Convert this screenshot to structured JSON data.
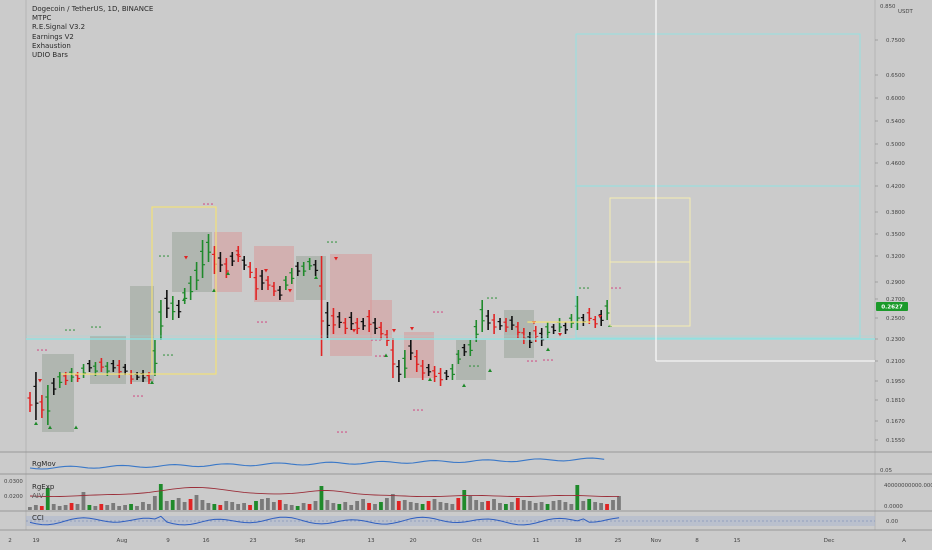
{
  "legend": {
    "symbol": "Dogecoin / TetherUS, 1D, BINANCE",
    "indicators": [
      "MTPC",
      "R.E.Signal V3.2",
      "Earnings V2",
      "Exhaustion",
      "UDIO Bars"
    ]
  },
  "price_axis": {
    "currency": "USDT",
    "top_label": "0.850",
    "ticks": [
      "0.7500",
      "0.6500",
      "0.6000",
      "0.5400",
      "0.5000",
      "0.4600",
      "0.4200",
      "0.3800",
      "0.3500",
      "0.3200",
      "0.2900",
      "0.2700",
      "0.2500",
      "0.2300",
      "0.2100",
      "0.1950",
      "0.1810",
      "0.1670",
      "0.1550"
    ],
    "current_price": "0.2627",
    "current_price_color": "#1b9a2a"
  },
  "panes": {
    "rgmov": {
      "label": "RgMov",
      "axis": "0.05"
    },
    "rgexp": {
      "label": "RgExp",
      "sub": "AIV",
      "axis_left": [
        "0.0300",
        "0.0200"
      ],
      "axis_right": [
        "40000000000.0000",
        "0.0000"
      ]
    },
    "cci": {
      "label": "CCI",
      "axis": "0.00"
    }
  },
  "date_axis": {
    "corner_left": "2",
    "labels": [
      "19",
      "Aug",
      "9",
      "16",
      "23",
      "Sep",
      "13",
      "20",
      "Oct",
      "11",
      "18",
      "25",
      "Nov",
      "8",
      "15",
      "Dec"
    ],
    "corner_right": "A"
  },
  "colors": {
    "background": "#cbcbcb",
    "bull": "#1f8a2b",
    "bear": "#e02424",
    "neutral": "#111111",
    "highlight_yellow": "#f2e27a",
    "highlight_cyan": "#8fe3e3",
    "rgmov_line": "#3a78c8",
    "rgexp_line": "#9b2f3a"
  },
  "icons": [
    "cursor-crosshair-icon"
  ]
}
